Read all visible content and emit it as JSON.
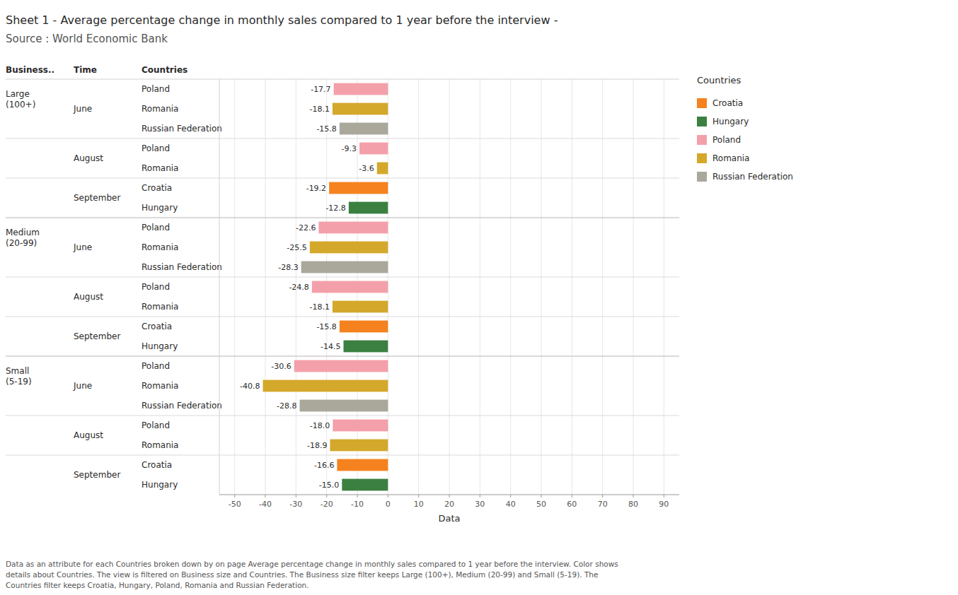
{
  "chart_data": {
    "type": "bar",
    "orientation": "horizontal",
    "title": "Sheet 1 - Average percentage change in monthly sales compared to 1 year before the interview -",
    "subtitle": "Source : World Economic Bank",
    "xlabel": "Data",
    "column_headers": [
      "Business..",
      "Time",
      "Countries"
    ],
    "business": [
      "Large\n(100+)",
      "Large\n(100+)",
      "Large\n(100+)",
      "Large\n(100+)",
      "Large\n(100+)",
      "Large\n(100+)",
      "Large\n(100+)",
      "Medium\n(20-99)",
      "Medium\n(20-99)",
      "Medium\n(20-99)",
      "Medium\n(20-99)",
      "Medium\n(20-99)",
      "Medium\n(20-99)",
      "Medium\n(20-99)",
      "Small\n(5-19)",
      "Small\n(5-19)",
      "Small\n(5-19)",
      "Small\n(5-19)",
      "Small\n(5-19)",
      "Small\n(5-19)",
      "Small\n(5-19)"
    ],
    "time": [
      "June",
      "June",
      "June",
      "August",
      "August",
      "September",
      "September",
      "June",
      "June",
      "June",
      "August",
      "August",
      "September",
      "September",
      "June",
      "June",
      "June",
      "August",
      "August",
      "September",
      "September"
    ],
    "categories": [
      "Poland",
      "Romania",
      "Russian Federation",
      "Poland",
      "Romania",
      "Croatia",
      "Hungary",
      "Poland",
      "Romania",
      "Russian Federation",
      "Poland",
      "Romania",
      "Croatia",
      "Hungary",
      "Poland",
      "Romania",
      "Russian Federation",
      "Poland",
      "Romania",
      "Croatia",
      "Hungary"
    ],
    "values": [
      -17.7,
      -18.1,
      -15.8,
      -9.3,
      -3.6,
      -19.2,
      -12.8,
      -22.6,
      -25.5,
      -28.3,
      -24.8,
      -18.1,
      -15.8,
      -14.5,
      -30.6,
      -40.8,
      -28.8,
      -18.0,
      -18.9,
      -16.6,
      -15.0
    ],
    "value_labels": [
      "-17.7",
      "-18.1",
      "-15.8",
      "-9.3",
      "-3.6",
      "-19.2",
      "-12.8",
      "-22.6",
      "-25.5",
      "-28.3",
      "-24.8",
      "-18.1",
      "-15.8",
      "-14.5",
      "-30.6",
      "-40.8",
      "-28.8",
      "-18.0",
      "-18.9",
      "-16.6",
      "-15.0"
    ],
    "colors": [
      "#F4A0AA",
      "#D4A82A",
      "#A9A89B",
      "#F4A0AA",
      "#D4A82A",
      "#F5821E",
      "#3B8040",
      "#F4A0AA",
      "#D4A82A",
      "#A9A89B",
      "#F4A0AA",
      "#D4A82A",
      "#F5821E",
      "#3B8040",
      "#F4A0AA",
      "#D4A82A",
      "#A9A89B",
      "#F4A0AA",
      "#D4A82A",
      "#F5821E",
      "#3B8040"
    ],
    "data_labels": true,
    "xlim": [
      -55,
      95
    ],
    "xticks": [
      -50,
      -40,
      -30,
      -20,
      -10,
      0,
      10,
      20,
      30,
      40,
      50,
      60,
      70,
      80,
      90
    ],
    "grid": true,
    "legend": "right",
    "legend_title": "Countries",
    "legend_entries": [
      {
        "name": "Croatia",
        "color": "#F5821E"
      },
      {
        "name": "Hungary",
        "color": "#3B8040"
      },
      {
        "name": "Poland",
        "color": "#F4A0AA"
      },
      {
        "name": "Romania",
        "color": "#D4A82A"
      },
      {
        "name": "Russian Federation",
        "color": "#A9A89B"
      }
    ],
    "footer": "Data as an attribute for each Countries broken down by  on page Average percentage change in monthly sales compared to 1 year before the interview.  Color shows\ndetails about Countries. The view is filtered on Business size and Countries. The Business size filter keeps Large (100+), Medium (20-99) and Small (5-19). The\nCountries filter keeps Croatia, Hungary, Poland, Romania and Russian Federation."
  }
}
